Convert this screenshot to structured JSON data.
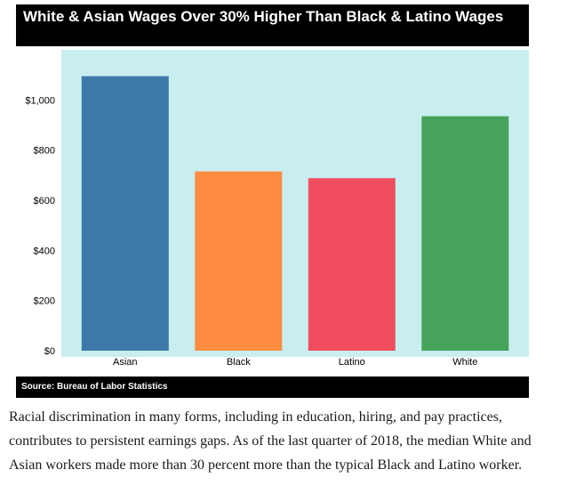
{
  "chart_data": {
    "type": "bar",
    "title": "White & Asian Wages Over 30% Higher Than Black & Latino Wages",
    "categories": [
      "Asian",
      "Black",
      "Latino",
      "White"
    ],
    "values": [
      1095,
      715,
      688,
      935
    ],
    "colors": [
      "#3d78a8",
      "#ff8c40",
      "#f24d5e",
      "#45a35a"
    ],
    "plot_background": "#c8eef0",
    "yticks": [
      "$0",
      "$200",
      "$400",
      "$600",
      "$800",
      "$1,000"
    ],
    "ylim": [
      0,
      1200
    ],
    "grid": false,
    "source": "Source: Bureau of Labor Statistics"
  },
  "caption": "Racial discrimination in many forms, including in education, hiring, and pay practices, contributes to persistent earnings gaps. As of the last quarter of 2018, the median White and Asian workers made more than 30 percent more than the typical Black and Latino worker."
}
